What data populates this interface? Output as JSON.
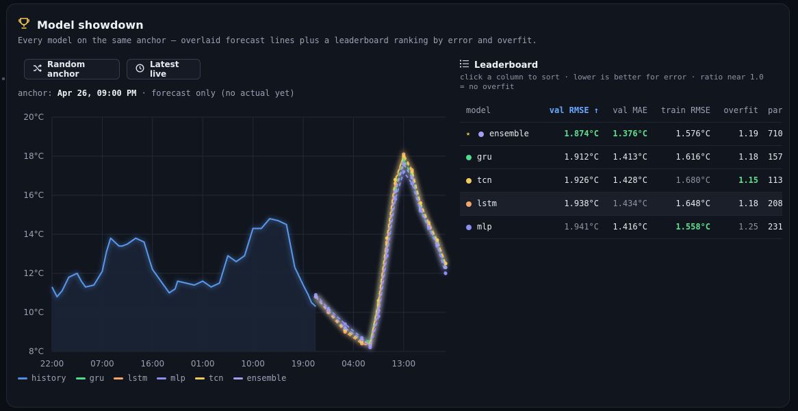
{
  "header": {
    "title": "Model showdown",
    "icon": "trophy-icon",
    "subtitle": "Every model on the same anchor — overlaid forecast lines plus a leaderboard ranking by error and overfit."
  },
  "buttons": {
    "random": "Random anchor",
    "latest": "Latest live"
  },
  "anchor": {
    "prefix": "anchor:",
    "time": "Apr 26, 09:00 PM",
    "suffix": " · forecast only (no actual yet)"
  },
  "legend": [
    {
      "label": "history",
      "color": "#4f8fe6"
    },
    {
      "label": "gru",
      "color": "#4fdc8f"
    },
    {
      "label": "lstm",
      "color": "#f4a66a"
    },
    {
      "label": "mlp",
      "color": "#8b8ff0"
    },
    {
      "label": "tcn",
      "color": "#f2cc5a"
    },
    {
      "label": "ensemble",
      "color": "#a79cf0"
    }
  ],
  "chart_data": {
    "type": "line",
    "x_ticks": [
      "22:00",
      "07:00",
      "16:00",
      "01:00",
      "10:00",
      "19:00",
      "04:00",
      "13:00"
    ],
    "y_ticks": [
      "20°C",
      "18°C",
      "16°C",
      "14°C",
      "12°C",
      "10°C",
      "8°C"
    ],
    "xlim": [
      0,
      47
    ],
    "ylim": [
      8,
      20
    ],
    "history": {
      "x": [
        0,
        0.6,
        1.2,
        2,
        3,
        3.5,
        4,
        5,
        6,
        6.5,
        7,
        8,
        8.4,
        9,
        10,
        11,
        11.7,
        12,
        13,
        14,
        14.7,
        15,
        16,
        17,
        18,
        19,
        20,
        21,
        22,
        23,
        24,
        25,
        26,
        27,
        28,
        29,
        30,
        30.6,
        31,
        31.5
      ],
      "y": [
        11.3,
        10.8,
        11.1,
        11.8,
        12.0,
        11.6,
        11.3,
        11.4,
        12.1,
        13.1,
        13.8,
        13.4,
        13.4,
        13.5,
        13.8,
        13.6,
        12.6,
        12.2,
        11.6,
        11.0,
        11.2,
        11.6,
        11.5,
        11.4,
        11.6,
        11.3,
        11.5,
        12.9,
        12.6,
        12.9,
        14.3,
        14.3,
        14.8,
        14.7,
        14.5,
        12.3,
        11.4,
        10.9,
        10.5,
        10.3
      ]
    },
    "forecast_x": [
      31.5,
      33,
      35,
      37,
      38,
      39,
      40,
      41,
      42,
      43,
      44,
      45,
      46,
      47
    ],
    "series": [
      {
        "name": "gru",
        "values": [
          10.8,
          10.1,
          9.2,
          8.6,
          8.5,
          10.5,
          13.5,
          16.3,
          17.8,
          17.0,
          15.4,
          14.4,
          13.6,
          12.3
        ]
      },
      {
        "name": "lstm",
        "values": [
          10.8,
          10.0,
          9.0,
          8.4,
          8.3,
          10.4,
          13.6,
          16.6,
          18.1,
          17.3,
          15.6,
          14.6,
          13.7,
          12.5
        ]
      },
      {
        "name": "mlp",
        "values": [
          10.9,
          10.2,
          9.4,
          8.7,
          8.2,
          9.8,
          12.9,
          15.8,
          17.2,
          16.6,
          15.2,
          14.3,
          13.4,
          12.0
        ]
      },
      {
        "name": "tcn",
        "values": [
          10.8,
          10.1,
          9.1,
          8.5,
          8.4,
          10.6,
          13.8,
          16.8,
          18.0,
          17.2,
          15.6,
          14.5,
          13.7,
          12.5
        ]
      },
      {
        "name": "ensemble",
        "values": [
          10.8,
          10.1,
          9.2,
          8.6,
          8.3,
          10.1,
          13.2,
          16.2,
          17.6,
          16.9,
          15.3,
          14.4,
          13.5,
          12.3
        ]
      }
    ]
  },
  "leaderboard": {
    "title": "Leaderboard",
    "hint": "click a column to sort · lower is better for error · ratio near 1.0 = no overfit",
    "columns": [
      "model",
      "val RMSE ↑",
      "val MAE",
      "train RMSE",
      "overfit",
      "params"
    ],
    "rows": [
      {
        "model": "ensemble",
        "star": "★",
        "color": "#a79cf0",
        "rmse": "1.874°C",
        "mae": "1.376°C",
        "train": "1.576°C",
        "overfit": "1.19",
        "params": "710"
      },
      {
        "model": "gru",
        "star": "",
        "color": "#4fdc8f",
        "rmse": "1.912°C",
        "mae": "1.413°C",
        "train": "1.616°C",
        "overfit": "1.18",
        "params": "157"
      },
      {
        "model": "tcn",
        "star": "",
        "color": "#f2cc5a",
        "rmse": "1.926°C",
        "mae": "1.428°C",
        "train": "1.680°C",
        "overfit": "1.15",
        "params": "113"
      },
      {
        "model": "lstm",
        "star": "",
        "color": "#f4a66a",
        "rmse": "1.938°C",
        "mae": "1.434°C",
        "train": "1.648°C",
        "overfit": "1.18",
        "params": "208"
      },
      {
        "model": "mlp",
        "star": "",
        "color": "#8b8ff0",
        "rmse": "1.941°C",
        "mae": "1.416°C",
        "train": "1.558°C",
        "overfit": "1.25",
        "params": "231"
      }
    ]
  }
}
